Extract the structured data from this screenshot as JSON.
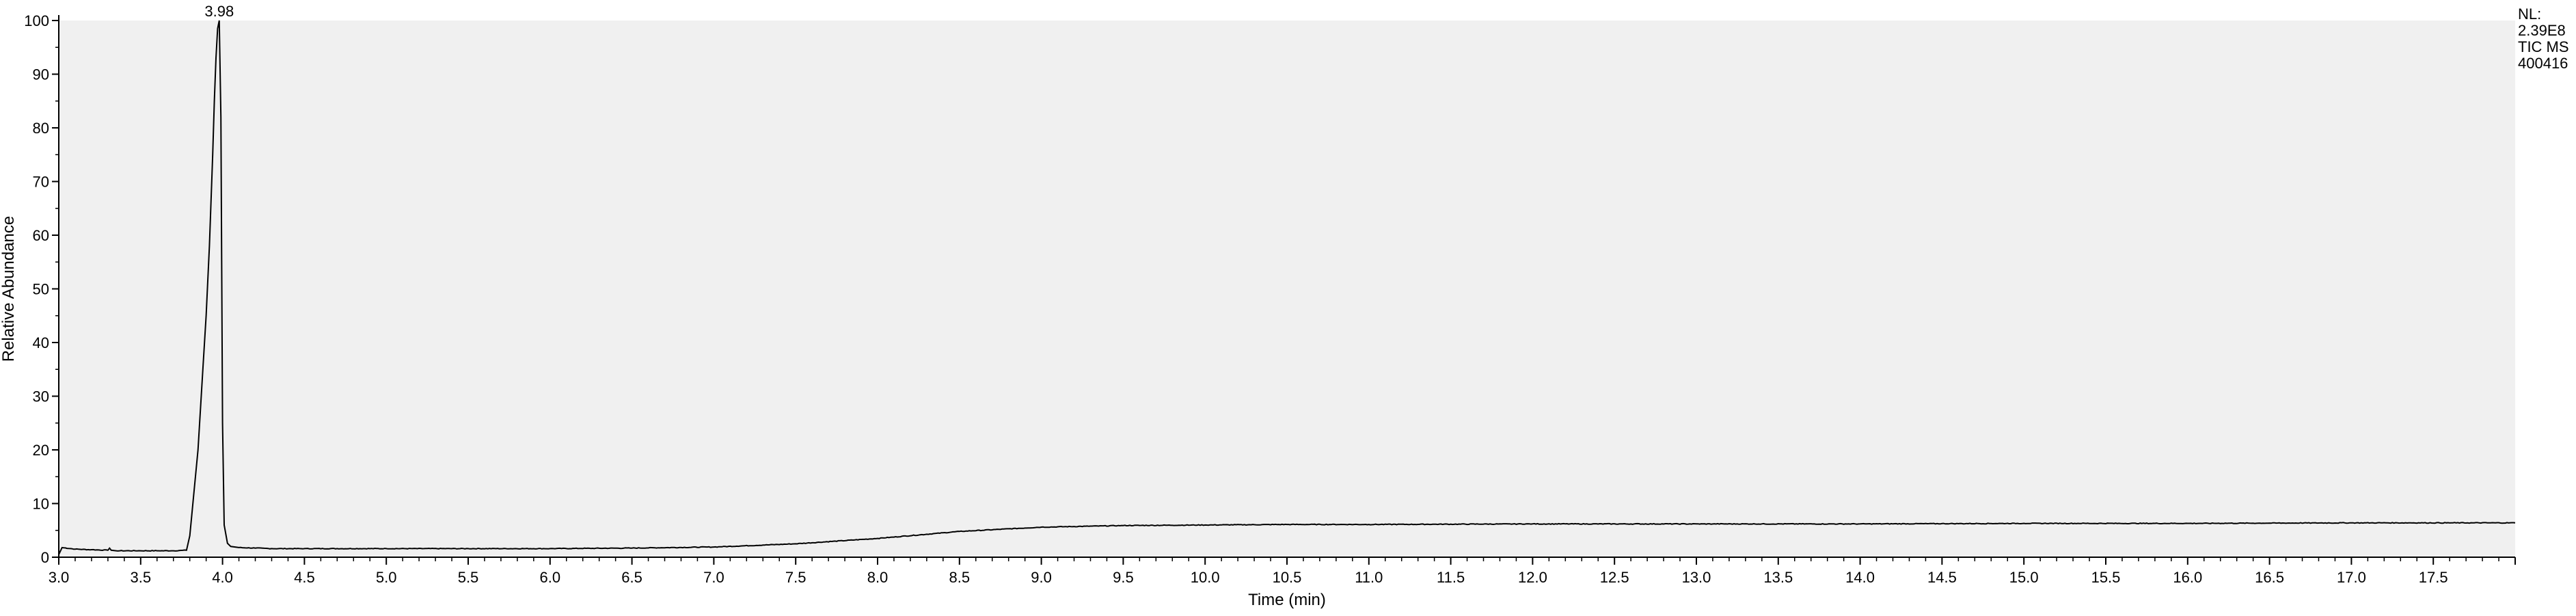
{
  "chart_data": {
    "type": "line",
    "title": "",
    "xlabel": "Time (min)",
    "ylabel": "Relative Abundance",
    "xlim": [
      3.0,
      18.0
    ],
    "ylim": [
      0,
      100
    ],
    "x_ticks": [
      3.0,
      3.5,
      4.0,
      4.5,
      5.0,
      5.5,
      6.0,
      6.5,
      7.0,
      7.5,
      8.0,
      8.5,
      9.0,
      9.5,
      10.0,
      10.5,
      11.0,
      11.5,
      12.0,
      12.5,
      13.0,
      13.5,
      14.0,
      14.5,
      15.0,
      15.5,
      16.0,
      16.5,
      17.0,
      17.5
    ],
    "x_tick_labels": [
      "3.0",
      "3.5",
      "4.0",
      "4.5",
      "5.0",
      "5.5",
      "6.0",
      "6.5",
      "7.0",
      "7.5",
      "8.0",
      "8.5",
      "9.0",
      "9.5",
      "10.0",
      "10.5",
      "11.0",
      "11.5",
      "12.0",
      "12.5",
      "13.0",
      "13.5",
      "14.0",
      "14.5",
      "15.0",
      "15.5",
      "16.0",
      "16.5",
      "17.0",
      "17.5"
    ],
    "y_ticks": [
      0,
      10,
      20,
      30,
      40,
      50,
      60,
      70,
      80,
      90,
      100
    ],
    "y_tick_labels": [
      "0",
      "10",
      "20",
      "30",
      "40",
      "50",
      "60",
      "70",
      "80",
      "90",
      "100"
    ],
    "grid": false,
    "series": [
      {
        "x": [
          3.0,
          3.02,
          3.1,
          3.2,
          3.3,
          3.31,
          3.32,
          3.35,
          3.5,
          3.6,
          3.7,
          3.78,
          3.8,
          3.85,
          3.88,
          3.9,
          3.92,
          3.94,
          3.95,
          3.96,
          3.97,
          3.98,
          3.99,
          4.0,
          4.01,
          4.03,
          4.05,
          4.1,
          4.2,
          4.3,
          4.5,
          5.0,
          5.5,
          6.0,
          6.5,
          7.0,
          7.5,
          8.0,
          8.5,
          9.0,
          9.5,
          10.0,
          10.5,
          11.0,
          12.0,
          13.0,
          14.0,
          15.0,
          16.0,
          17.0,
          18.0
        ],
        "y": [
          0.5,
          1.8,
          1.5,
          1.4,
          1.3,
          1.7,
          1.3,
          1.2,
          1.2,
          1.2,
          1.2,
          1.3,
          4.0,
          20.0,
          35.0,
          45.0,
          58.0,
          75.0,
          85.0,
          93.0,
          98.5,
          100.0,
          82.0,
          25.0,
          6.0,
          2.6,
          2.0,
          1.8,
          1.7,
          1.6,
          1.6,
          1.6,
          1.6,
          1.6,
          1.7,
          1.9,
          2.5,
          3.5,
          4.8,
          5.6,
          5.9,
          6.0,
          6.1,
          6.1,
          6.2,
          6.2,
          6.2,
          6.3,
          6.3,
          6.4,
          6.4
        ]
      }
    ],
    "annotations": [
      {
        "x": 3.98,
        "y": 100,
        "text": "3.98"
      }
    ],
    "info_text": [
      "NL:",
      "2.39E8",
      "TIC  MS",
      "400416"
    ]
  },
  "colors": {
    "plot_background": "#f0f0f0",
    "line": "#000000",
    "axis": "#000000",
    "page_background": "#ffffff"
  }
}
